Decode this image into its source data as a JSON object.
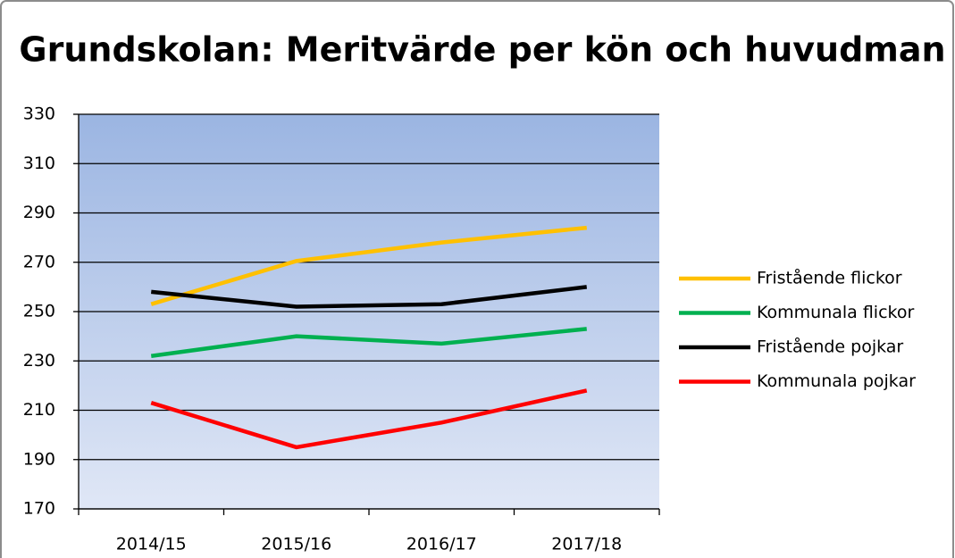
{
  "chart_data": {
    "type": "line",
    "title": "Grundskolan: Meritvärde per kön och huvudman",
    "categories": [
      "2014/15",
      "2015/16",
      "2016/17",
      "2017/18"
    ],
    "series": [
      {
        "name": "Fristående flickor",
        "color": "#ffc000",
        "values": [
          253,
          270.5,
          278,
          284
        ]
      },
      {
        "name": "Kommunala flickor",
        "color": "#00b050",
        "values": [
          232,
          240,
          237,
          243
        ]
      },
      {
        "name": "Fristående pojkar",
        "color": "#000000",
        "values": [
          258,
          252,
          253,
          260
        ]
      },
      {
        "name": "Kommunala pojkar",
        "color": "#ff0000",
        "values": [
          213,
          195,
          205,
          218
        ]
      }
    ],
    "ylim": [
      170,
      330
    ],
    "yticks": [
      170,
      190,
      210,
      230,
      250,
      270,
      290,
      310,
      330
    ],
    "grid": true,
    "legend": "right"
  }
}
